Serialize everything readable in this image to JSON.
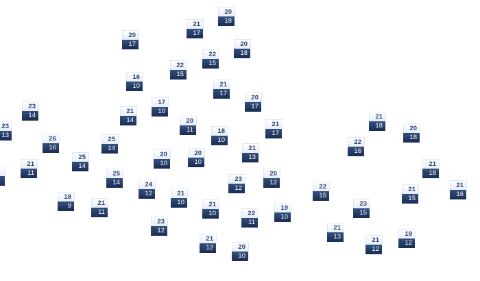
{
  "colors": {
    "high_bg": "#eef3fb",
    "high_text": "#2c4270",
    "low_bg": "#243a66",
    "low_text": "#ffffff"
  },
  "markers": [
    {
      "high": "20",
      "low": "18"
    },
    {
      "high": "21",
      "low": "17"
    },
    {
      "high": "20",
      "low": "17"
    },
    {
      "high": "20",
      "low": "18"
    },
    {
      "high": "22",
      "low": "15"
    },
    {
      "high": "22",
      "low": "15"
    },
    {
      "high": "16",
      "low": "10"
    },
    {
      "high": "21",
      "low": "17"
    },
    {
      "high": "17",
      "low": "10"
    },
    {
      "high": "20",
      "low": "17"
    },
    {
      "high": "21",
      "low": "14"
    },
    {
      "high": "23",
      "low": "14"
    },
    {
      "high": "23",
      "low": "13"
    },
    {
      "high": "20",
      "low": "11"
    },
    {
      "high": "18",
      "low": "10"
    },
    {
      "high": "21",
      "low": "17"
    },
    {
      "high": "21",
      "low": "18"
    },
    {
      "high": "20",
      "low": "18"
    },
    {
      "high": "26",
      "low": "16"
    },
    {
      "high": "25",
      "low": "14"
    },
    {
      "high": "22",
      "low": "16"
    },
    {
      "high": "20",
      "low": "10"
    },
    {
      "high": "20",
      "low": "10"
    },
    {
      "high": "21",
      "low": "13"
    },
    {
      "high": "25",
      "low": "14"
    },
    {
      "high": "21",
      "low": "11"
    },
    {
      "high": "21",
      "low": "18"
    },
    {
      "high": "",
      "low": ""
    },
    {
      "high": "25",
      "low": "14"
    },
    {
      "high": "23",
      "low": "12"
    },
    {
      "high": "20",
      "low": "12"
    },
    {
      "high": "24",
      "low": "12"
    },
    {
      "high": "22",
      "low": "15"
    },
    {
      "high": "21",
      "low": "16"
    },
    {
      "high": "21",
      "low": "15"
    },
    {
      "high": "18",
      "low": "9"
    },
    {
      "high": "21",
      "low": "10"
    },
    {
      "high": "21",
      "low": "11"
    },
    {
      "high": "21",
      "low": "10"
    },
    {
      "high": "23",
      "low": "15"
    },
    {
      "high": "19",
      "low": "10"
    },
    {
      "high": "22",
      "low": "11"
    },
    {
      "high": "23",
      "low": "12"
    },
    {
      "high": "21",
      "low": "13"
    },
    {
      "high": "21",
      "low": "12"
    },
    {
      "high": "19",
      "low": "12"
    },
    {
      "high": "21",
      "low": "12"
    },
    {
      "high": "20",
      "low": "10"
    }
  ]
}
